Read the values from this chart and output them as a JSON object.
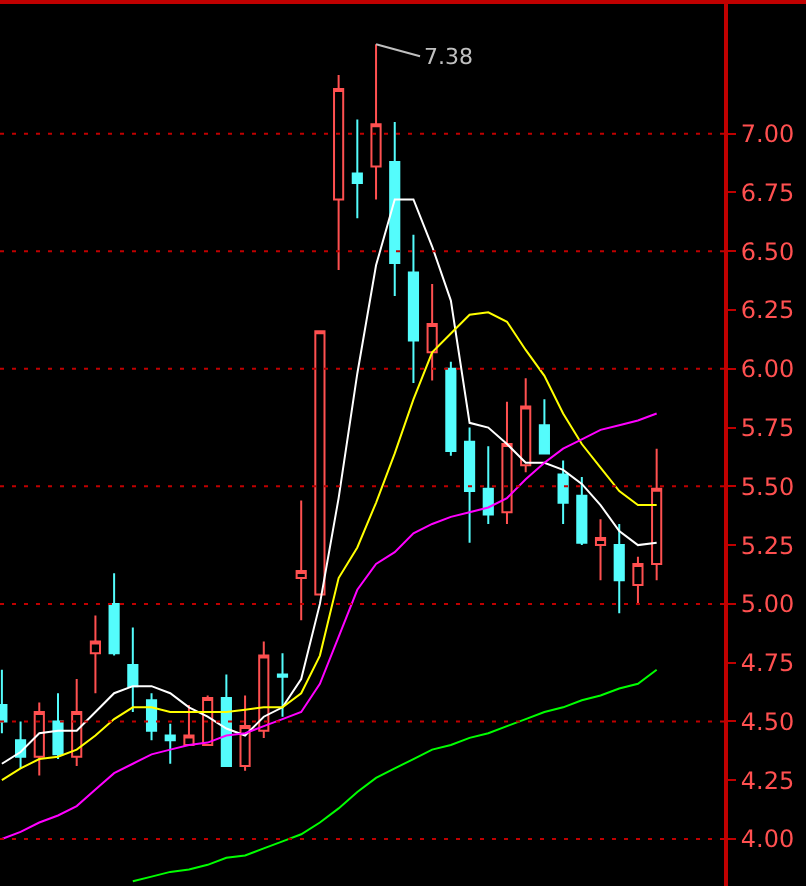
{
  "chart_data": {
    "type": "candlestick",
    "categories": [
      null,
      null,
      null,
      null,
      null,
      null,
      null,
      null,
      null,
      null,
      null,
      null,
      null,
      null,
      null,
      null,
      null,
      null,
      null,
      null,
      null,
      null,
      null,
      null,
      null,
      null,
      null,
      null,
      null,
      null,
      null,
      null,
      null,
      null,
      null,
      null
    ],
    "ohlc": [
      [
        4.57,
        4.72,
        4.45,
        4.5
      ],
      [
        4.42,
        4.5,
        4.3,
        4.35
      ],
      [
        4.35,
        4.58,
        4.27,
        4.54
      ],
      [
        4.5,
        4.62,
        4.34,
        4.36
      ],
      [
        4.35,
        4.68,
        4.31,
        4.54
      ],
      [
        4.79,
        4.95,
        4.62,
        4.84
      ],
      [
        5.0,
        5.13,
        4.78,
        4.79
      ],
      [
        4.74,
        4.9,
        4.54,
        4.65
      ],
      [
        4.59,
        4.62,
        4.42,
        4.46
      ],
      [
        4.44,
        4.49,
        4.32,
        4.42
      ],
      [
        4.4,
        4.57,
        4.4,
        4.44
      ],
      [
        4.4,
        4.61,
        4.4,
        4.6
      ],
      [
        4.6,
        4.7,
        4.31,
        4.31
      ],
      [
        4.31,
        4.61,
        4.29,
        4.48
      ],
      [
        4.46,
        4.84,
        4.43,
        4.78
      ],
      [
        4.7,
        4.79,
        4.52,
        4.69
      ],
      [
        5.11,
        5.44,
        4.93,
        5.14
      ],
      [
        5.04,
        6.16,
        5.04,
        6.16
      ],
      [
        6.72,
        7.25,
        6.42,
        7.19
      ],
      [
        6.83,
        7.06,
        6.64,
        6.79
      ],
      [
        6.86,
        7.38,
        6.72,
        7.04
      ],
      [
        6.88,
        7.05,
        6.31,
        6.45
      ],
      [
        6.41,
        6.57,
        5.94,
        6.12
      ],
      [
        6.07,
        6.36,
        5.95,
        6.19
      ],
      [
        6.0,
        6.03,
        5.63,
        5.65
      ],
      [
        5.69,
        5.75,
        5.26,
        5.48
      ],
      [
        5.49,
        5.67,
        5.34,
        5.38
      ],
      [
        5.39,
        5.86,
        5.34,
        5.68
      ],
      [
        5.59,
        5.96,
        5.56,
        5.84
      ],
      [
        5.76,
        5.87,
        5.64,
        5.64
      ],
      [
        5.55,
        5.61,
        5.34,
        5.43
      ],
      [
        5.46,
        5.54,
        5.25,
        5.26
      ],
      [
        5.25,
        5.36,
        5.1,
        5.28
      ],
      [
        5.25,
        5.34,
        4.96,
        5.1
      ],
      [
        5.08,
        5.2,
        5.0,
        5.17
      ],
      [
        5.17,
        5.66,
        5.1,
        5.49
      ]
    ],
    "series": [
      {
        "type": "line",
        "color": "#ffffff",
        "values": [
          4.32,
          4.37,
          4.45,
          4.46,
          4.46,
          4.54,
          4.62,
          4.65,
          4.65,
          4.62,
          4.56,
          4.52,
          4.47,
          4.44,
          4.52,
          4.56,
          4.68,
          5.0,
          5.45,
          5.98,
          6.44,
          6.72,
          6.72,
          6.52,
          6.29,
          5.77,
          5.75,
          5.68,
          5.6,
          5.6,
          5.57,
          5.51,
          5.42,
          5.31,
          5.25,
          5.26
        ]
      },
      {
        "type": "line",
        "color": "#ffff00",
        "values": [
          4.25,
          4.3,
          4.34,
          4.35,
          4.38,
          4.44,
          4.51,
          4.56,
          4.56,
          4.54,
          4.54,
          4.54,
          4.54,
          4.55,
          4.56,
          4.56,
          4.62,
          4.78,
          5.11,
          5.24,
          5.43,
          5.64,
          5.87,
          6.07,
          6.15,
          6.23,
          6.24,
          6.2,
          6.08,
          5.97,
          5.81,
          5.68,
          5.58,
          5.48,
          5.42,
          5.42
        ]
      },
      {
        "type": "line",
        "color": "#ff00ff",
        "values": [
          4.0,
          4.03,
          4.07,
          4.1,
          4.14,
          4.21,
          4.28,
          4.32,
          4.36,
          4.38,
          4.4,
          4.41,
          4.44,
          4.45,
          4.48,
          4.51,
          4.54,
          4.66,
          4.86,
          5.06,
          5.17,
          5.22,
          5.3,
          5.34,
          5.37,
          5.39,
          5.41,
          5.45,
          5.53,
          5.6,
          5.66,
          5.7,
          5.74,
          5.76,
          5.78,
          5.81
        ]
      },
      {
        "type": "line",
        "color": "#00ff00",
        "values": [
          null,
          null,
          null,
          null,
          null,
          null,
          null,
          3.82,
          3.84,
          3.86,
          3.87,
          3.89,
          3.92,
          3.93,
          3.96,
          3.99,
          4.02,
          4.07,
          4.13,
          4.2,
          4.26,
          4.3,
          4.34,
          4.38,
          4.4,
          4.43,
          4.45,
          4.48,
          4.51,
          4.54,
          4.56,
          4.59,
          4.61,
          4.64,
          4.66,
          4.72
        ]
      }
    ],
    "ylim": [
      3.8,
      7.56
    ],
    "yticks": [
      {
        "value": 4.0,
        "label": "4.00"
      },
      {
        "value": 4.25,
        "label": "4.25"
      },
      {
        "value": 4.5,
        "label": "4.50"
      },
      {
        "value": 4.75,
        "label": "4.75"
      },
      {
        "value": 5.0,
        "label": "5.00"
      },
      {
        "value": 5.25,
        "label": "5.25"
      },
      {
        "value": 5.5,
        "label": "5.50"
      },
      {
        "value": 5.75,
        "label": "5.75"
      },
      {
        "value": 6.0,
        "label": "6.00"
      },
      {
        "value": 6.25,
        "label": "6.25"
      },
      {
        "value": 6.5,
        "label": "6.50"
      },
      {
        "value": 6.75,
        "label": "6.75"
      },
      {
        "value": 7.0,
        "label": "7.00"
      }
    ],
    "annotations": [
      "7.38"
    ],
    "grid": "y",
    "marker": "none",
    "line_style": "solid"
  }
}
